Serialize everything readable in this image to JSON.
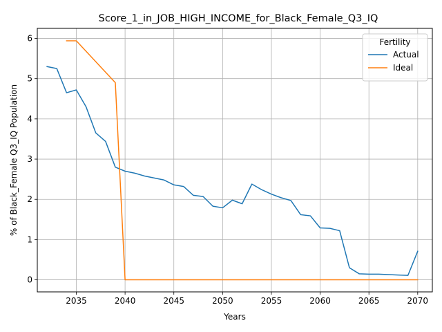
{
  "chart_data": {
    "type": "line",
    "title": "Score_1_in_JOB_HIGH_INCOME_for_Black_Female_Q3_IQ",
    "xlabel": "Years",
    "ylabel": "% of Black_Female Q3_IQ Population",
    "xlim": [
      2031,
      2071.5
    ],
    "ylim": [
      -0.3,
      6.25
    ],
    "xticks": [
      2035,
      2040,
      2045,
      2050,
      2055,
      2060,
      2065,
      2070
    ],
    "yticks": [
      0,
      1,
      2,
      3,
      4,
      5,
      6
    ],
    "grid": true,
    "legend": {
      "title": "Fertility",
      "placement": "top-right"
    },
    "series": [
      {
        "name": "Actual",
        "color": "#1f77b4",
        "x": [
          2032,
          2033,
          2034,
          2035,
          2036,
          2037,
          2038,
          2039,
          2040,
          2041,
          2042,
          2043,
          2044,
          2045,
          2046,
          2047,
          2048,
          2049,
          2050,
          2051,
          2052,
          2053,
          2054,
          2055,
          2056,
          2057,
          2058,
          2059,
          2060,
          2061,
          2062,
          2063,
          2064,
          2065,
          2066,
          2067,
          2068,
          2069,
          2070
        ],
        "y": [
          5.3,
          5.25,
          4.65,
          4.72,
          4.3,
          3.65,
          3.44,
          2.8,
          2.7,
          2.65,
          2.58,
          2.53,
          2.48,
          2.36,
          2.32,
          2.1,
          2.07,
          1.83,
          1.79,
          1.98,
          1.89,
          2.38,
          2.24,
          2.13,
          2.04,
          1.97,
          1.62,
          1.59,
          1.29,
          1.28,
          1.22,
          0.3,
          0.15,
          0.14,
          0.14,
          0.13,
          0.12,
          0.11,
          0.71
        ]
      },
      {
        "name": "Ideal",
        "color": "#ff7f0e",
        "x": [
          2034,
          2035,
          2036,
          2037,
          2038,
          2039,
          2040,
          2041,
          2042,
          2043,
          2044,
          2045,
          2046,
          2047,
          2048,
          2049,
          2050,
          2051,
          2052,
          2053,
          2054,
          2055,
          2056,
          2057,
          2058,
          2059,
          2060,
          2061,
          2062,
          2063,
          2064,
          2065,
          2066,
          2067,
          2068,
          2069,
          2070
        ],
        "y": [
          5.94,
          5.94,
          5.68,
          5.42,
          5.16,
          4.9,
          0,
          0,
          0,
          0,
          0,
          0,
          0,
          0,
          0,
          0,
          0,
          0,
          0,
          0,
          0,
          0,
          0,
          0,
          0,
          0,
          0,
          0,
          0,
          0,
          0,
          0,
          0,
          0,
          0,
          0,
          0
        ]
      }
    ]
  }
}
